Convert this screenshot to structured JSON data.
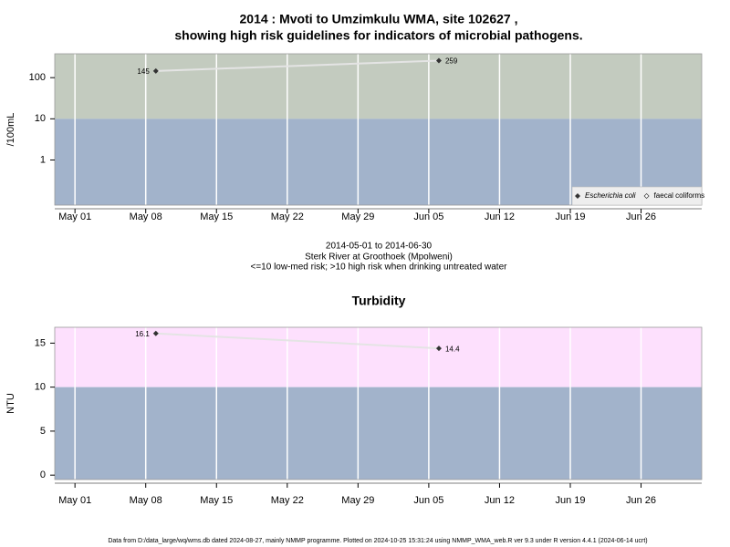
{
  "footer": "Data from D:/data_large/wq/wms.db dated 2024-08-27, mainly NMMP programme. Plotted on 2024-10-25 15:31:24 using NMMP_WMA_web.R ver 9.3 under R version 4.4.1 (2024-06-14 ucrt)",
  "chart_data": [
    {
      "type": "line",
      "title": [
        "2014 : Mvoti to Umzimkulu WMA, site 102627 ,",
        "showing high risk guidelines for indicators of microbial pathogens."
      ],
      "subtitle": [
        "2014-05-01 to 2014-06-30",
        "Sterk River at Groothoek (Mpolweni)",
        "<=10 low-med risk; >10 high risk when drinking untreated water"
      ],
      "y_label": "/100mL",
      "x": [
        "2014-05-09",
        "2014-06-06"
      ],
      "series": [
        {
          "name": "Escherichia coli",
          "color": "#333333",
          "values": [
            145,
            259
          ]
        },
        {
          "name": "faecal coliforms",
          "color": "#333333",
          "values": [
            null,
            null
          ]
        }
      ],
      "log_scale": true,
      "threshold": 10,
      "above_color": "#c3cbbf",
      "below_color": "#a2b3cb",
      "xlim": [
        "2014-04-29",
        "2014-07-02"
      ],
      "xticks": [
        {
          "value": "2014-05-01",
          "label": "May 01"
        },
        {
          "value": "2014-05-08",
          "label": "May 08"
        },
        {
          "value": "2014-05-15",
          "label": "May 15"
        },
        {
          "value": "2014-05-22",
          "label": "May 22"
        },
        {
          "value": "2014-05-29",
          "label": "May 29"
        },
        {
          "value": "2014-06-05",
          "label": "Jun 05"
        },
        {
          "value": "2014-06-12",
          "label": "Jun 12"
        },
        {
          "value": "2014-06-19",
          "label": "Jun 19"
        },
        {
          "value": "2014-06-26",
          "label": "Jun 26"
        }
      ],
      "ylim": [
        0.08,
        380
      ],
      "yticks": [
        1,
        10,
        100
      ],
      "grid": true,
      "legend": "bottom right"
    },
    {
      "type": "line",
      "title": [
        "Turbidity"
      ],
      "y_label": "NTU",
      "x": [
        "2014-05-09",
        "2014-06-06"
      ],
      "series": [
        {
          "name": "Turbidity",
          "color": "#333333",
          "values": [
            16.1,
            14.4
          ]
        }
      ],
      "log_scale": false,
      "threshold": 10,
      "above_color": "#fde0fd",
      "below_color": "#a2b3cb",
      "xlim": [
        "2014-04-29",
        "2014-07-02"
      ],
      "xticks": [
        {
          "value": "2014-05-01",
          "label": "May 01"
        },
        {
          "value": "2014-05-08",
          "label": "May 08"
        },
        {
          "value": "2014-05-15",
          "label": "May 15"
        },
        {
          "value": "2014-05-22",
          "label": "May 22"
        },
        {
          "value": "2014-05-29",
          "label": "May 29"
        },
        {
          "value": "2014-06-05",
          "label": "Jun 05"
        },
        {
          "value": "2014-06-12",
          "label": "Jun 12"
        },
        {
          "value": "2014-06-19",
          "label": "Jun 19"
        },
        {
          "value": "2014-06-26",
          "label": "Jun 26"
        }
      ],
      "ylim": [
        -0.5,
        16.8
      ],
      "yticks": [
        0,
        5,
        10,
        15
      ],
      "grid": true
    }
  ]
}
